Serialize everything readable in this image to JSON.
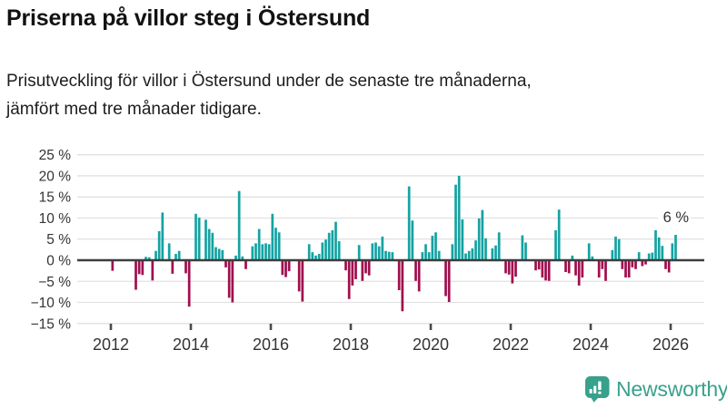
{
  "header": {
    "title": "Priserna på villor steg i Östersund",
    "subtitle_line1": "Prisutveckling för villor i Östersund under de senaste tre månaderna,",
    "subtitle_line2": "jämfört med tre månader tidigare."
  },
  "chart_data": {
    "type": "bar",
    "title": "Priserna på villor steg i Östersund",
    "subtitle": "Prisutveckling för villor i Östersund under de senaste tre månaderna, jämfört med tre månader tidigare.",
    "unit": "%",
    "frequency": "monthly",
    "start_month": "2012-01",
    "end_month": "2026-02",
    "ylim": [
      -15,
      25
    ],
    "grid": true,
    "y_ticks": [
      25,
      20,
      15,
      10,
      5,
      0,
      -5,
      -10,
      -15
    ],
    "y_tick_labels": [
      "25 %",
      "20 %",
      "15 %",
      "10 %",
      "5 %",
      "0 %",
      "−5 %",
      "−10 %",
      "−15 %"
    ],
    "x_tick_labels": [
      "2012",
      "2014",
      "2016",
      "2018",
      "2020",
      "2022",
      "2024",
      "2026"
    ],
    "values": [
      -2.5,
      0,
      0,
      0,
      0,
      0,
      0,
      -7.0,
      -3.3,
      -3.5,
      0.8,
      0.7,
      -4.8,
      2.2,
      6.9,
      11.3,
      0,
      4.0,
      -3.2,
      1.5,
      2.2,
      0,
      -3.1,
      -11.0,
      0,
      11.0,
      10.1,
      0,
      9.6,
      7.4,
      6.5,
      3.1,
      2.7,
      2.4,
      -1.7,
      -8.9,
      -10.0,
      1.1,
      16.4,
      0.9,
      -2.1,
      0,
      3.3,
      4.0,
      7.4,
      3.8,
      4.0,
      3.8,
      11.0,
      7.7,
      6.6,
      -3.5,
      -4.0,
      -2.6,
      0,
      0,
      -7.4,
      -9.8,
      0,
      3.8,
      1.9,
      1.1,
      1.5,
      4.2,
      4.9,
      6.5,
      7.1,
      9.1,
      4.5,
      0,
      -2.4,
      -9.2,
      -6.0,
      -4.5,
      3.6,
      -4.9,
      -3.1,
      -3.6,
      4.0,
      4.2,
      3.3,
      5.6,
      2.2,
      2.0,
      1.9,
      0,
      -7.1,
      -12.1,
      0,
      17.5,
      9.4,
      -4.9,
      -7.4,
      1.9,
      3.8,
      1.9,
      5.8,
      6.6,
      2.2,
      0,
      -8.5,
      -9.9,
      3.8,
      17.9,
      20.0,
      9.7,
      1.6,
      2.2,
      2.8,
      4.7,
      9.9,
      11.9,
      5.2,
      0,
      2.8,
      3.5,
      6.6,
      0,
      -3.1,
      -3.4,
      -5.5,
      -3.9,
      0,
      5.9,
      4.2,
      0,
      0,
      -2.4,
      -2.2,
      -4.1,
      -4.8,
      -4.9,
      0,
      7.1,
      12.0,
      0,
      -2.8,
      -3.1,
      1.1,
      -3.6,
      -6.0,
      -4.1,
      0,
      4.0,
      0.9,
      0,
      -4.1,
      -2.1,
      -4.9,
      0,
      2.4,
      5.6,
      5.0,
      -2.1,
      -4.1,
      -4.1,
      -1.7,
      -2.1,
      1.9,
      -1.4,
      -1.0,
      1.6,
      1.8,
      7.1,
      5.4,
      3.4,
      -2.1,
      -2.9,
      4.0,
      6.0
    ],
    "annotation": {
      "label": "6 %",
      "value": 6
    },
    "legend": "none",
    "colors": {
      "positive": "#15a2a2",
      "negative": "#a00d4d",
      "grid": "#e1e1e1",
      "axis": "#3d3d3d",
      "text": "#333333"
    }
  },
  "footer": {
    "brand": "Newsworthy",
    "brand_color": "#38a18c"
  }
}
